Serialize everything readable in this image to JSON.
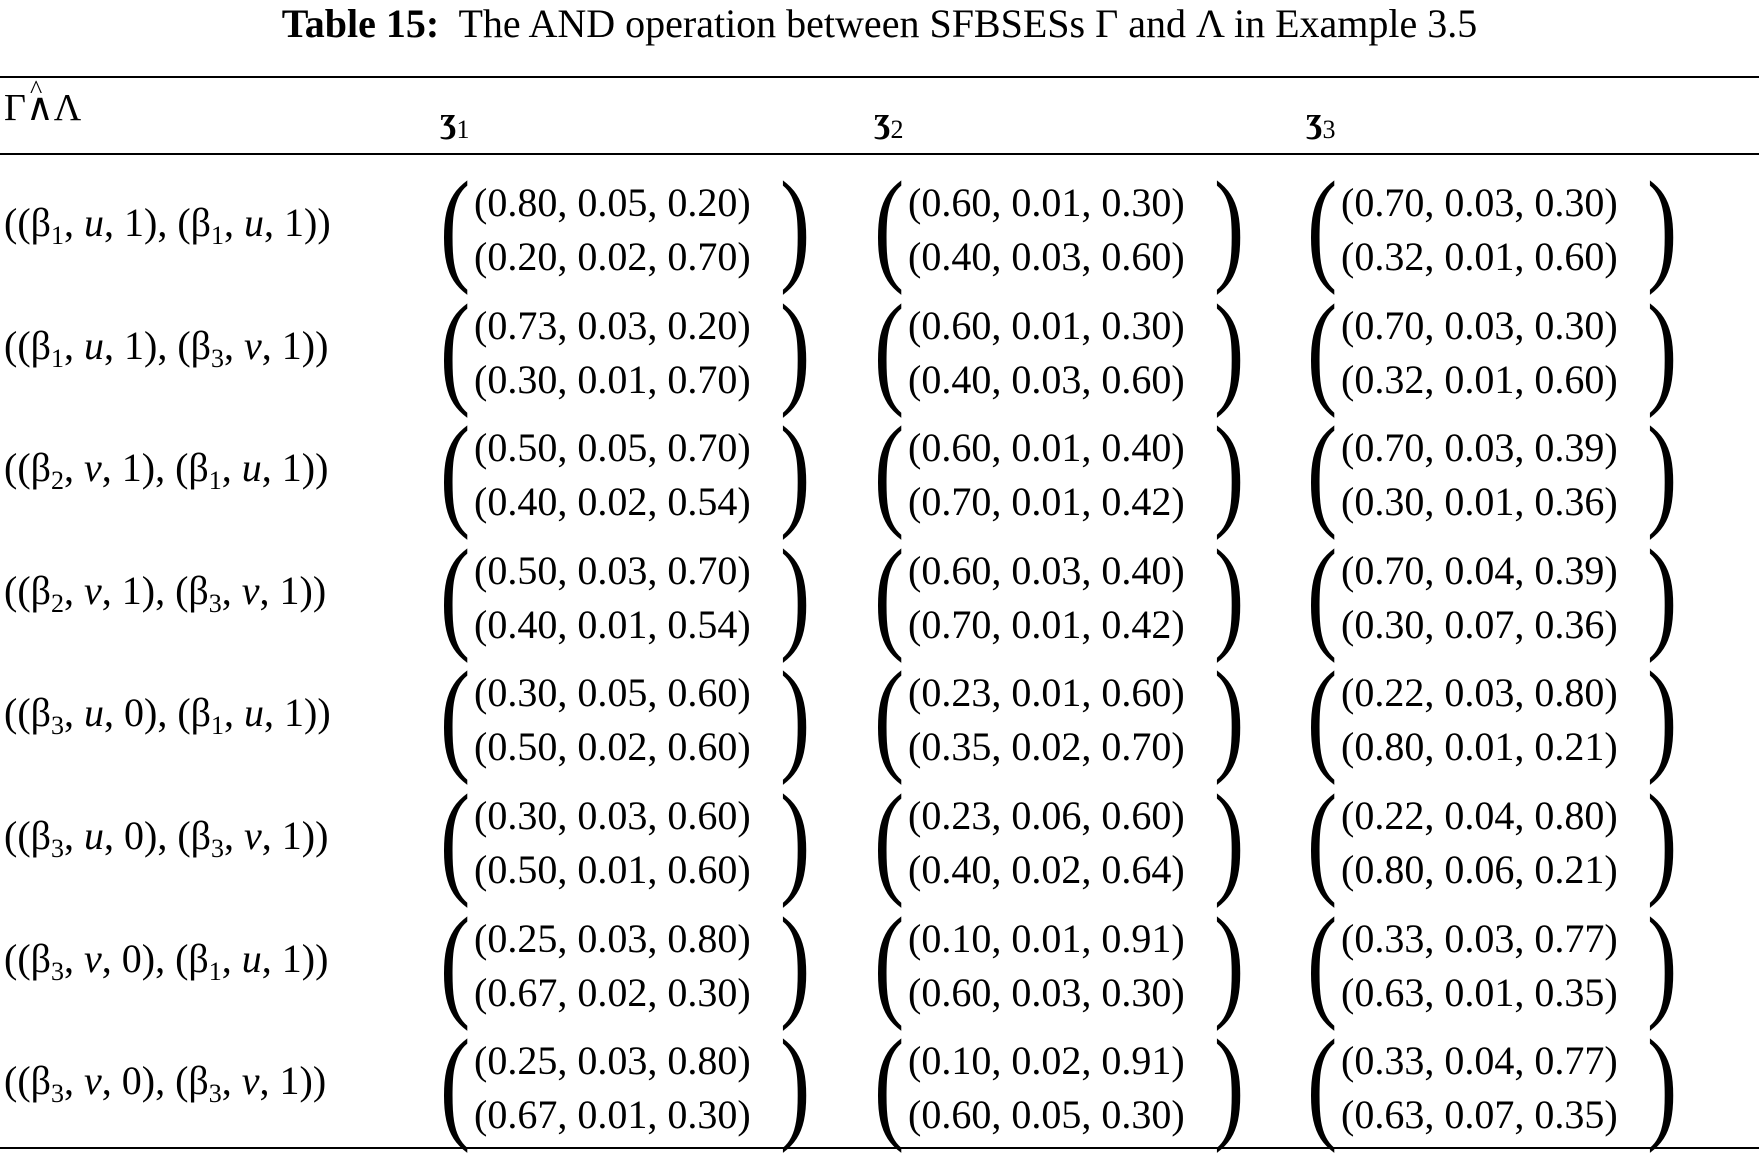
{
  "caption": {
    "label": "Table 15:",
    "text": "The AND operation between SFBSESs Γ and Λ in Example 3.5"
  },
  "header": {
    "row_label_left": "Γ",
    "row_label_op": "∧",
    "row_label_hat": "^",
    "row_label_right": "Λ",
    "columns": [
      {
        "symbol": "ʒ",
        "index": "1"
      },
      {
        "symbol": "ʒ",
        "index": "2"
      },
      {
        "symbol": "ʒ",
        "index": "3"
      }
    ]
  },
  "rows": [
    {
      "label": {
        "b1": "1",
        "p1": "u",
        "v1": "1",
        "b2": "1",
        "p2": "u",
        "v2": "1"
      },
      "cells": [
        [
          "(0.80, 0.05, 0.20)",
          "(0.20, 0.02, 0.70)"
        ],
        [
          "(0.60, 0.01, 0.30)",
          "(0.40, 0.03, 0.60)"
        ],
        [
          "(0.70, 0.03, 0.30)",
          "(0.32, 0.01, 0.60)"
        ]
      ]
    },
    {
      "label": {
        "b1": "1",
        "p1": "u",
        "v1": "1",
        "b2": "3",
        "p2": "v",
        "v2": "1"
      },
      "cells": [
        [
          "(0.73, 0.03, 0.20)",
          "(0.30, 0.01, 0.70)"
        ],
        [
          "(0.60, 0.01, 0.30)",
          "(0.40, 0.03, 0.60)"
        ],
        [
          "(0.70, 0.03, 0.30)",
          "(0.32, 0.01, 0.60)"
        ]
      ]
    },
    {
      "label": {
        "b1": "2",
        "p1": "v",
        "v1": "1",
        "b2": "1",
        "p2": "u",
        "v2": "1"
      },
      "cells": [
        [
          "(0.50, 0.05, 0.70)",
          "(0.40, 0.02, 0.54)"
        ],
        [
          "(0.60, 0.01, 0.40)",
          "(0.70, 0.01, 0.42)"
        ],
        [
          "(0.70, 0.03, 0.39)",
          "(0.30, 0.01, 0.36)"
        ]
      ]
    },
    {
      "label": {
        "b1": "2",
        "p1": "v",
        "v1": "1",
        "b2": "3",
        "p2": "v",
        "v2": "1"
      },
      "cells": [
        [
          "(0.50, 0.03, 0.70)",
          "(0.40, 0.01, 0.54)"
        ],
        [
          "(0.60, 0.03, 0.40)",
          "(0.70, 0.01, 0.42)"
        ],
        [
          "(0.70, 0.04, 0.39)",
          "(0.30, 0.07, 0.36)"
        ]
      ]
    },
    {
      "label": {
        "b1": "3",
        "p1": "u",
        "v1": "0",
        "b2": "1",
        "p2": "u",
        "v2": "1"
      },
      "cells": [
        [
          "(0.30, 0.05, 0.60)",
          "(0.50, 0.02, 0.60)"
        ],
        [
          "(0.23, 0.01, 0.60)",
          "(0.35, 0.02, 0.70)"
        ],
        [
          "(0.22, 0.03, 0.80)",
          "(0.80, 0.01, 0.21)"
        ]
      ]
    },
    {
      "label": {
        "b1": "3",
        "p1": "u",
        "v1": "0",
        "b2": "3",
        "p2": "v",
        "v2": "1"
      },
      "cells": [
        [
          "(0.30, 0.03, 0.60)",
          "(0.50, 0.01, 0.60)"
        ],
        [
          "(0.23, 0.06, 0.60)",
          "(0.40, 0.02, 0.64)"
        ],
        [
          "(0.22, 0.04, 0.80)",
          "(0.80, 0.06, 0.21)"
        ]
      ]
    },
    {
      "label": {
        "b1": "3",
        "p1": "v",
        "v1": "0",
        "b2": "1",
        "p2": "u",
        "v2": "1"
      },
      "cells": [
        [
          "(0.25, 0.03, 0.80)",
          "(0.67, 0.02, 0.30)"
        ],
        [
          "(0.10, 0.01, 0.91)",
          "(0.60, 0.03, 0.30)"
        ],
        [
          "(0.33, 0.03, 0.77)",
          "(0.63, 0.01, 0.35)"
        ]
      ]
    },
    {
      "label": {
        "b1": "3",
        "p1": "v",
        "v1": "0",
        "b2": "3",
        "p2": "v",
        "v2": "1"
      },
      "cells": [
        [
          "(0.25, 0.03, 0.80)",
          "(0.67, 0.01, 0.30)"
        ],
        [
          "(0.10, 0.02, 0.91)",
          "(0.60, 0.05, 0.30)"
        ],
        [
          "(0.33, 0.04, 0.77)",
          "(0.63, 0.07, 0.35)"
        ]
      ]
    }
  ]
}
